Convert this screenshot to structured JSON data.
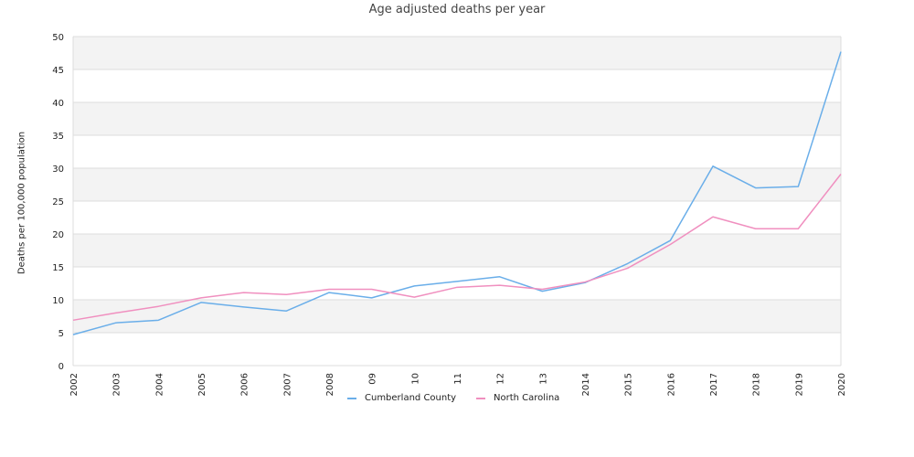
{
  "chart_data": {
    "type": "line",
    "title": "Age adjusted deaths per year",
    "xlabel": "",
    "ylabel": "Deaths per 100,000 population",
    "categories": [
      "2002",
      "2003",
      "2004",
      "2005",
      "2006",
      "2007",
      "2008",
      "09",
      "10",
      "11",
      "12",
      "13",
      "2014",
      "2015",
      "2016",
      "2017",
      "2018",
      "2019",
      "2020"
    ],
    "ylim": [
      0,
      50
    ],
    "yticks": [
      0,
      5,
      10,
      15,
      20,
      25,
      30,
      35,
      40,
      45,
      50
    ],
    "grid": "alternating horizontal bands",
    "legend_position": "bottom",
    "series": [
      {
        "name": "Cumberland County",
        "color": "#6aaee9",
        "values": [
          4.7,
          6.5,
          6.9,
          9.6,
          8.9,
          8.3,
          11.1,
          10.3,
          12.1,
          12.8,
          13.5,
          11.3,
          12.6,
          15.5,
          19.0,
          30.3,
          27.0,
          27.2,
          47.7
        ]
      },
      {
        "name": "North Carolina",
        "color": "#f08fbf",
        "values": [
          6.9,
          8.0,
          9.0,
          10.3,
          11.1,
          10.8,
          11.6,
          11.6,
          10.4,
          11.9,
          12.2,
          11.6,
          12.7,
          14.8,
          18.4,
          22.6,
          20.8,
          20.8,
          29.1
        ]
      }
    ]
  }
}
